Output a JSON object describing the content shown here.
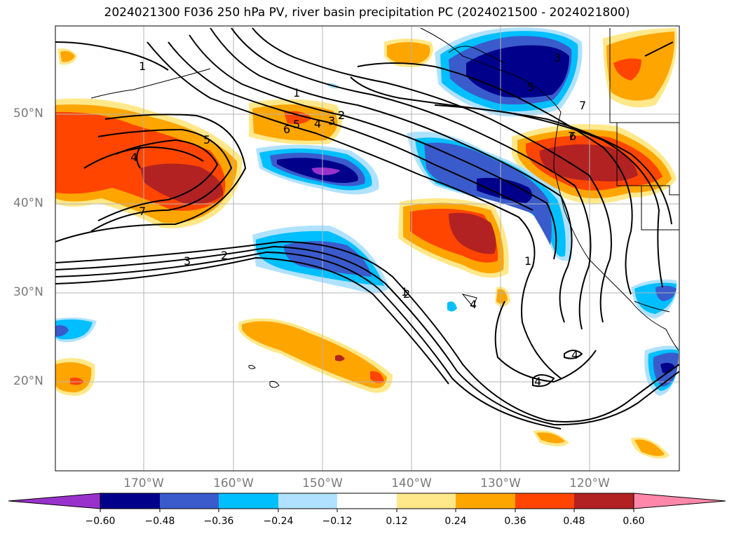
{
  "title": "2024021300 F036 250 hPa PV, river basin precipitation PC (2024021500 - 2024021800)",
  "lat_labels": [
    "50°N",
    "40°N",
    "30°N",
    "20°N"
  ],
  "lon_labels": [
    "170°W",
    "160°W",
    "150°W",
    "140°W",
    "130°W",
    "120°W"
  ],
  "colorbar": {
    "ticks": [
      "−0.60",
      "−0.48",
      "−0.36",
      "−0.24",
      "−0.12",
      "0.12",
      "0.24",
      "0.36",
      "0.48",
      "0.60"
    ],
    "colors": [
      "#9932cc",
      "#00008b",
      "#3a5bcc",
      "#00bfff",
      "#b0e2ff",
      "#ffffff",
      "#ffe88a",
      "#ffa500",
      "#ff4500",
      "#b22222",
      "#ff88aa"
    ]
  },
  "contour_labels": [
    "1",
    "2",
    "3",
    "4",
    "5",
    "6",
    "7",
    "1",
    "5",
    "4",
    "3",
    "2",
    "5",
    "7",
    "3",
    "2",
    "1",
    "1",
    "7",
    "6",
    "4",
    "4",
    "4",
    "2"
  ],
  "colors": {
    "dark_blue": "#00008b",
    "medium_blue": "#3a5bcc",
    "light_blue": "#00bfff",
    "orange": "#ffa500",
    "red_orange": "#ff4500",
    "dark_red": "#b22222",
    "yellow": "#ffe88a",
    "purple": "#9932cc"
  }
}
